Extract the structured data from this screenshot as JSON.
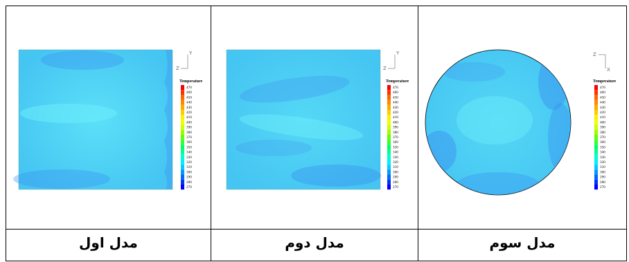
{
  "panels": [
    {
      "caption": "مدل اول",
      "shape": "square",
      "legend_title": "Temperature",
      "axes": {
        "vertical": "Y",
        "horizontal": "Z"
      }
    },
    {
      "caption": "مدل دوم",
      "shape": "square",
      "legend_title": "Temperature",
      "axes": {
        "vertical": "Y",
        "horizontal": "Z"
      }
    },
    {
      "caption": "مدل سوم",
      "shape": "circle",
      "legend_title": "Temperature",
      "axes": {
        "vertical": "X",
        "horizontal": "Z"
      }
    }
  ],
  "legend_levels": [
    "470",
    "460",
    "450",
    "440",
    "430",
    "420",
    "410",
    "400",
    "390",
    "380",
    "370",
    "360",
    "350",
    "340",
    "330",
    "320",
    "310",
    "300",
    "290",
    "280",
    "270"
  ],
  "legend_colors": [
    "#ff0000",
    "#ff3300",
    "#ff6600",
    "#ff8800",
    "#ffaa00",
    "#ffcc00",
    "#ffee00",
    "#eeff00",
    "#ccff00",
    "#99ff00",
    "#66ff00",
    "#33ff33",
    "#00ff66",
    "#00ff99",
    "#00ffcc",
    "#00eeff",
    "#00ccff",
    "#0099ff",
    "#0066ff",
    "#0033ff",
    "#0000ff"
  ],
  "field_colors": {
    "base": "#45c5f2",
    "dark": "#3a8ff0",
    "light": "#5ce0f8"
  }
}
